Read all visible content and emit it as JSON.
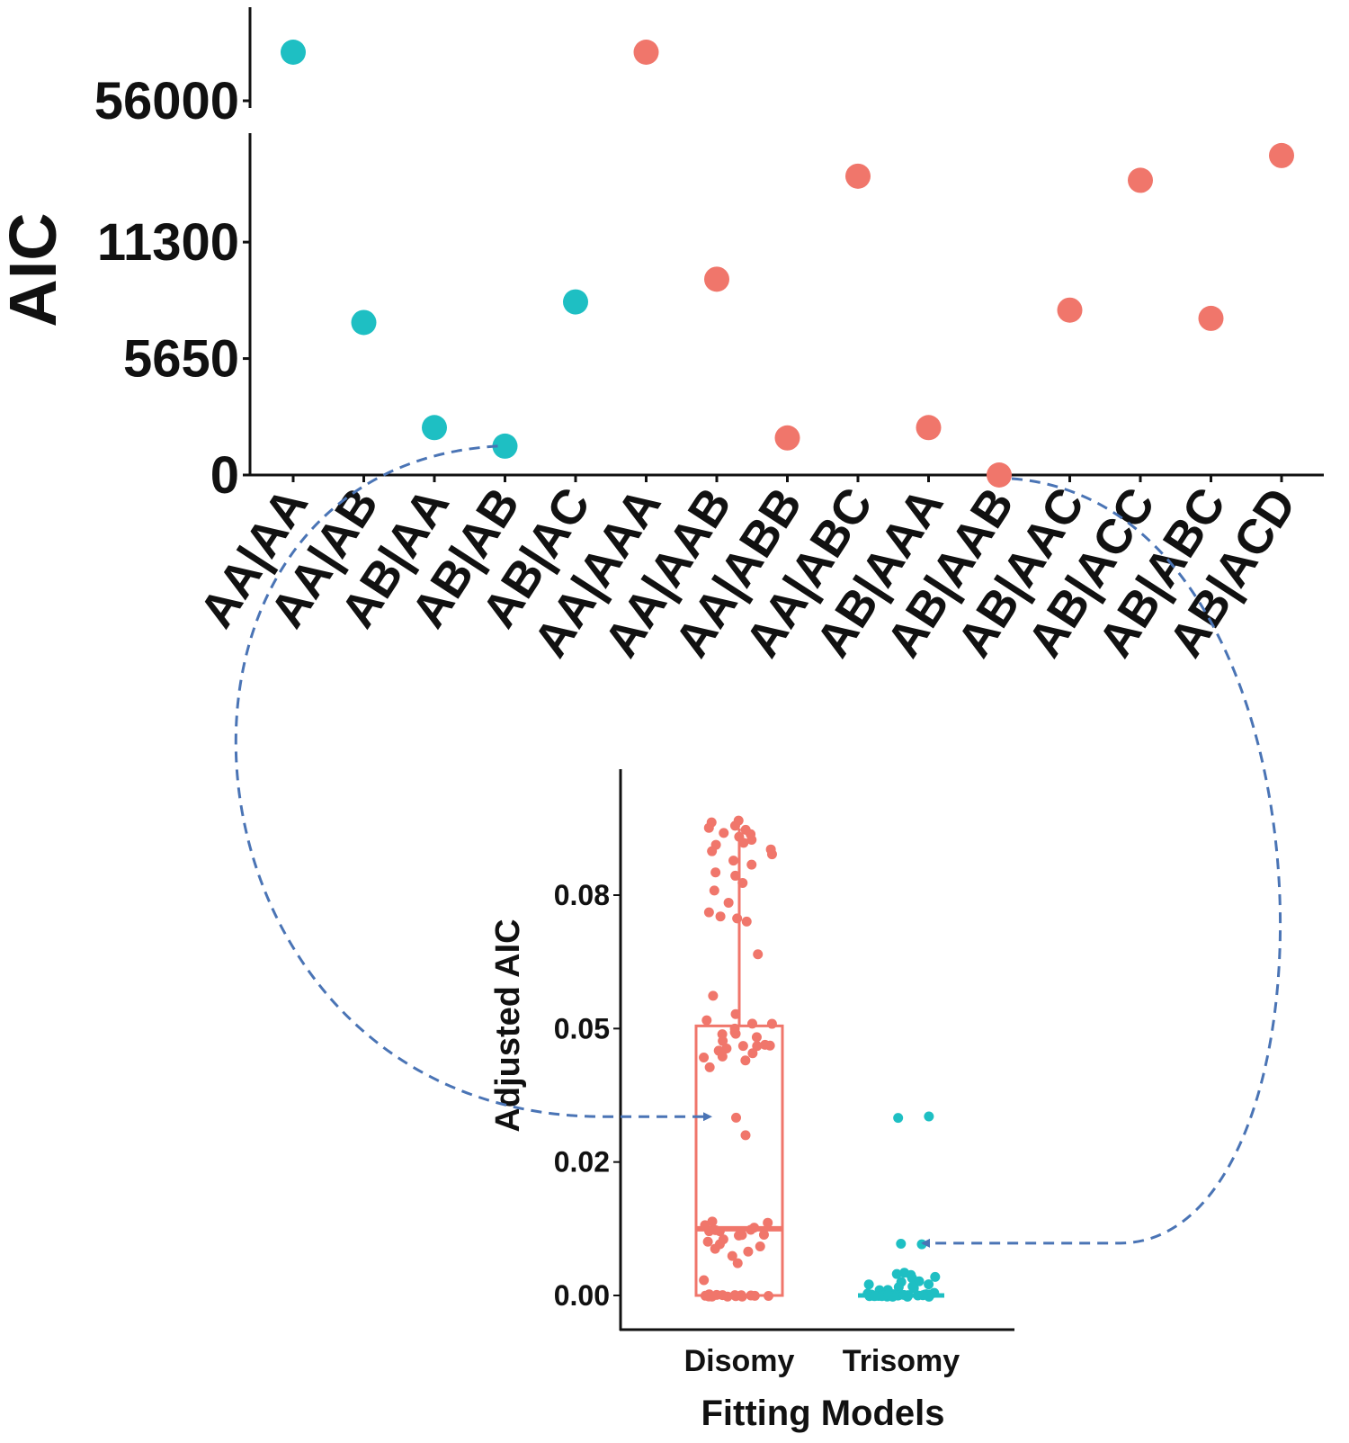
{
  "colors": {
    "disomy": "#F0766B",
    "trisomy": "#1EBFC3",
    "arrow": "#4A74B5",
    "axis": "#111111"
  },
  "chart_data": [
    {
      "type": "scatter",
      "ylabel": "AIC",
      "y_scale": "broken",
      "y_ticks": [
        "0",
        "5650",
        "11300",
        "56000"
      ],
      "categories": [
        "AA|AA",
        "AA|AB",
        "AB|AA",
        "AB|AB",
        "AB|AC",
        "AA|AAA",
        "AA|AAB",
        "AA|ABB",
        "AA|ABC",
        "AB|AAA",
        "AB|AAB",
        "AB|AAC",
        "AB|ACC",
        "AB|ABC",
        "AB|ACD"
      ],
      "points": [
        {
          "x": "AA|AA",
          "y": 58000,
          "model": "disomy"
        },
        {
          "x": "AA|AB",
          "y": 7400,
          "model": "disomy"
        },
        {
          "x": "AB|AA",
          "y": 2300,
          "model": "disomy"
        },
        {
          "x": "AB|AB",
          "y": 1400,
          "model": "disomy"
        },
        {
          "x": "AB|AC",
          "y": 8400,
          "model": "disomy"
        },
        {
          "x": "AA|AAA",
          "y": 58000,
          "model": "trisomy"
        },
        {
          "x": "AA|AAB",
          "y": 9500,
          "model": "trisomy"
        },
        {
          "x": "AA|ABB",
          "y": 1800,
          "model": "trisomy"
        },
        {
          "x": "AA|ABC",
          "y": 14500,
          "model": "trisomy"
        },
        {
          "x": "AB|AAA",
          "y": 2300,
          "model": "trisomy"
        },
        {
          "x": "AB|AAB",
          "y": 0,
          "model": "trisomy"
        },
        {
          "x": "AB|AAC",
          "y": 8000,
          "model": "trisomy"
        },
        {
          "x": "AB|ACC",
          "y": 14300,
          "model": "trisomy"
        },
        {
          "x": "AB|ABC",
          "y": 7600,
          "model": "trisomy"
        },
        {
          "x": "AB|ACD",
          "y": 15500,
          "model": "trisomy"
        }
      ]
    },
    {
      "type": "box",
      "ylabel": "Adjusted AIC",
      "xlabel": "Fitting Models",
      "ylim": [
        0,
        0.092
      ],
      "y_ticks": [
        {
          "value": 0,
          "label": "0.00"
        },
        {
          "value": 0.025,
          "label": "0.02"
        },
        {
          "value": 0.05,
          "label": "0.05"
        },
        {
          "value": 0.075,
          "label": "0.08"
        }
      ],
      "categories": [
        "Disomy",
        "Trisomy"
      ],
      "boxes": [
        {
          "name": "Disomy",
          "min": 0,
          "q1": 0,
          "median": 0.0125,
          "q3": 0.0505,
          "max": 0.0875
        },
        {
          "name": "Trisomy",
          "min": 0,
          "q1": 0,
          "median": 0,
          "q3": 0,
          "max": 0
        }
      ],
      "points": {
        "Disomy": [
          0.089,
          0.0885,
          0.088,
          0.0878,
          0.0872,
          0.0868,
          0.0862,
          0.0858,
          0.0852,
          0.0848,
          0.0842,
          0.0838,
          0.0832,
          0.0825,
          0.0815,
          0.0806,
          0.0795,
          0.0785,
          0.0772,
          0.076,
          0.0735,
          0.072,
          0.0712,
          0.0705,
          0.07,
          0.064,
          0.056,
          0.0525,
          0.0515,
          0.051,
          0.0508,
          0.05,
          0.0495,
          0.049,
          0.0488,
          0.0482,
          0.0478,
          0.0472,
          0.047,
          0.0468,
          0.0465,
          0.0462,
          0.0458,
          0.0455,
          0.045,
          0.0445,
          0.044,
          0.043,
          0.0335,
          0.03,
          0.014,
          0.0135,
          0.013,
          0.0128,
          0.0125,
          0.0122,
          0.012,
          0.0118,
          0.0115,
          0.0112,
          0.011,
          0.0105,
          0.01,
          0.0095,
          0.009,
          0.0085,
          0.008,
          0.0072,
          0.006,
          0.003,
          0,
          0,
          0,
          0,
          0,
          0,
          0,
          0,
          0,
          0,
          0,
          0,
          0,
          0
        ],
        "Trisomy": [
          0.0335,
          0.0335,
          0.0098,
          0.0098,
          0.0045,
          0.004,
          0.0038,
          0.0035,
          0.0032,
          0.0028,
          0.0025,
          0.0022,
          0.002,
          0.0018,
          0.0015,
          0.0012,
          0.001,
          0.0008,
          0.0005,
          0.0003,
          0,
          0,
          0,
          0,
          0,
          0,
          0,
          0,
          0,
          0,
          0,
          0,
          0,
          0,
          0,
          0,
          0,
          0,
          0,
          0,
          0,
          0,
          0,
          0,
          0,
          0,
          0,
          0,
          0,
          0
        ]
      },
      "annotations": [
        {
          "from": {
            "chart": 0,
            "x": "AB|AB",
            "y": 1400
          },
          "to": {
            "category": "Disomy",
            "y": 0.0335
          }
        },
        {
          "from": {
            "chart": 0,
            "x": "AB|AAB",
            "y": 0
          },
          "to": {
            "category": "Trisomy",
            "y": 0.0098
          }
        }
      ]
    }
  ]
}
